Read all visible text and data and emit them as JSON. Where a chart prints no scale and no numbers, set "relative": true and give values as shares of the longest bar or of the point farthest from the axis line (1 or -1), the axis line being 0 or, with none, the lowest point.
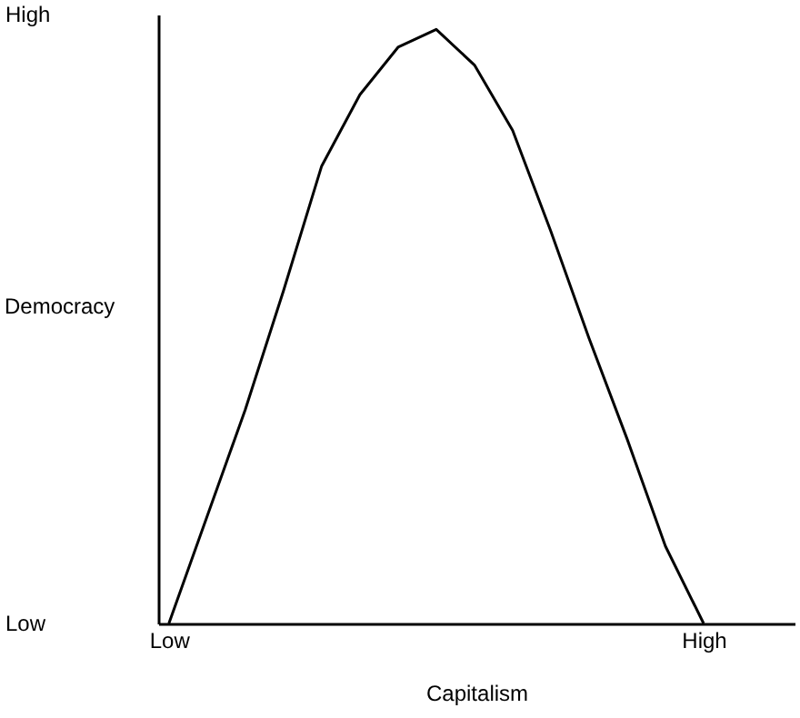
{
  "chart_data": {
    "type": "line",
    "xlabel": "Capitalism",
    "ylabel": "Democracy",
    "relative": true,
    "categories": [
      "Low",
      null,
      null,
      null,
      null,
      null,
      null,
      null,
      null,
      null,
      null,
      null,
      null,
      null,
      "High"
    ],
    "series": [
      {
        "color": "#000000",
        "values": [
          0,
          0.18,
          0.36,
          0.56,
          0.77,
          0.89,
          0.97,
          1,
          0.94,
          0.83,
          0.66,
          0.48,
          0.31,
          0.13,
          0
        ]
      }
    ],
    "annotations": [
      "High",
      "Low"
    ],
    "grid": false,
    "marker": "none",
    "line_style": "solid"
  }
}
